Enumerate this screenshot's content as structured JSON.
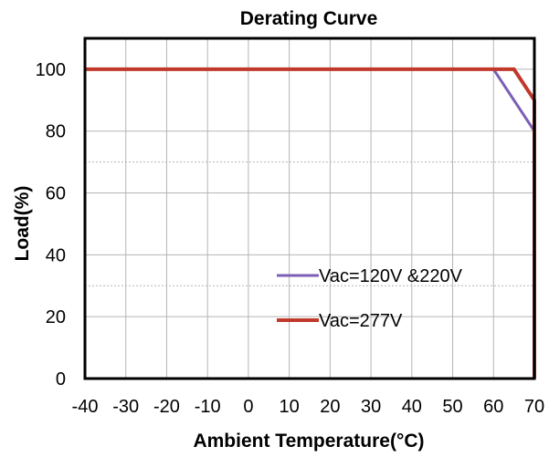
{
  "chart_data": {
    "type": "line",
    "title": "Derating Curve",
    "xlabel": "Ambient Temperature(°C)",
    "ylabel": "Load(%)",
    "xlim": [
      -40,
      70
    ],
    "ylim": [
      0,
      110
    ],
    "xticks": [
      -40,
      -30,
      -20,
      -10,
      0,
      10,
      20,
      30,
      40,
      50,
      60,
      70
    ],
    "xtick_labels": [
      "-40",
      "-30",
      "-20",
      "-10",
      "0",
      "10",
      "20",
      "30",
      "40",
      "50",
      "60",
      "70"
    ],
    "yticks": [
      0,
      20,
      40,
      60,
      80,
      100
    ],
    "ytick_labels": [
      "0",
      "20",
      "40",
      "60",
      "80",
      "100"
    ],
    "extra_dotted_gridlines_y": [
      30,
      70
    ],
    "grid": true,
    "legend_position": "bottom-right",
    "series": [
      {
        "name": "Vac=120V &220V",
        "color": "#7b5fb5",
        "x": [
          60,
          70
        ],
        "y": [
          100,
          80
        ]
      },
      {
        "name": "Vac=277V",
        "color": "#c0392b",
        "x": [
          -40,
          65,
          70,
          70
        ],
        "y": [
          100,
          100,
          90,
          0
        ]
      }
    ]
  }
}
